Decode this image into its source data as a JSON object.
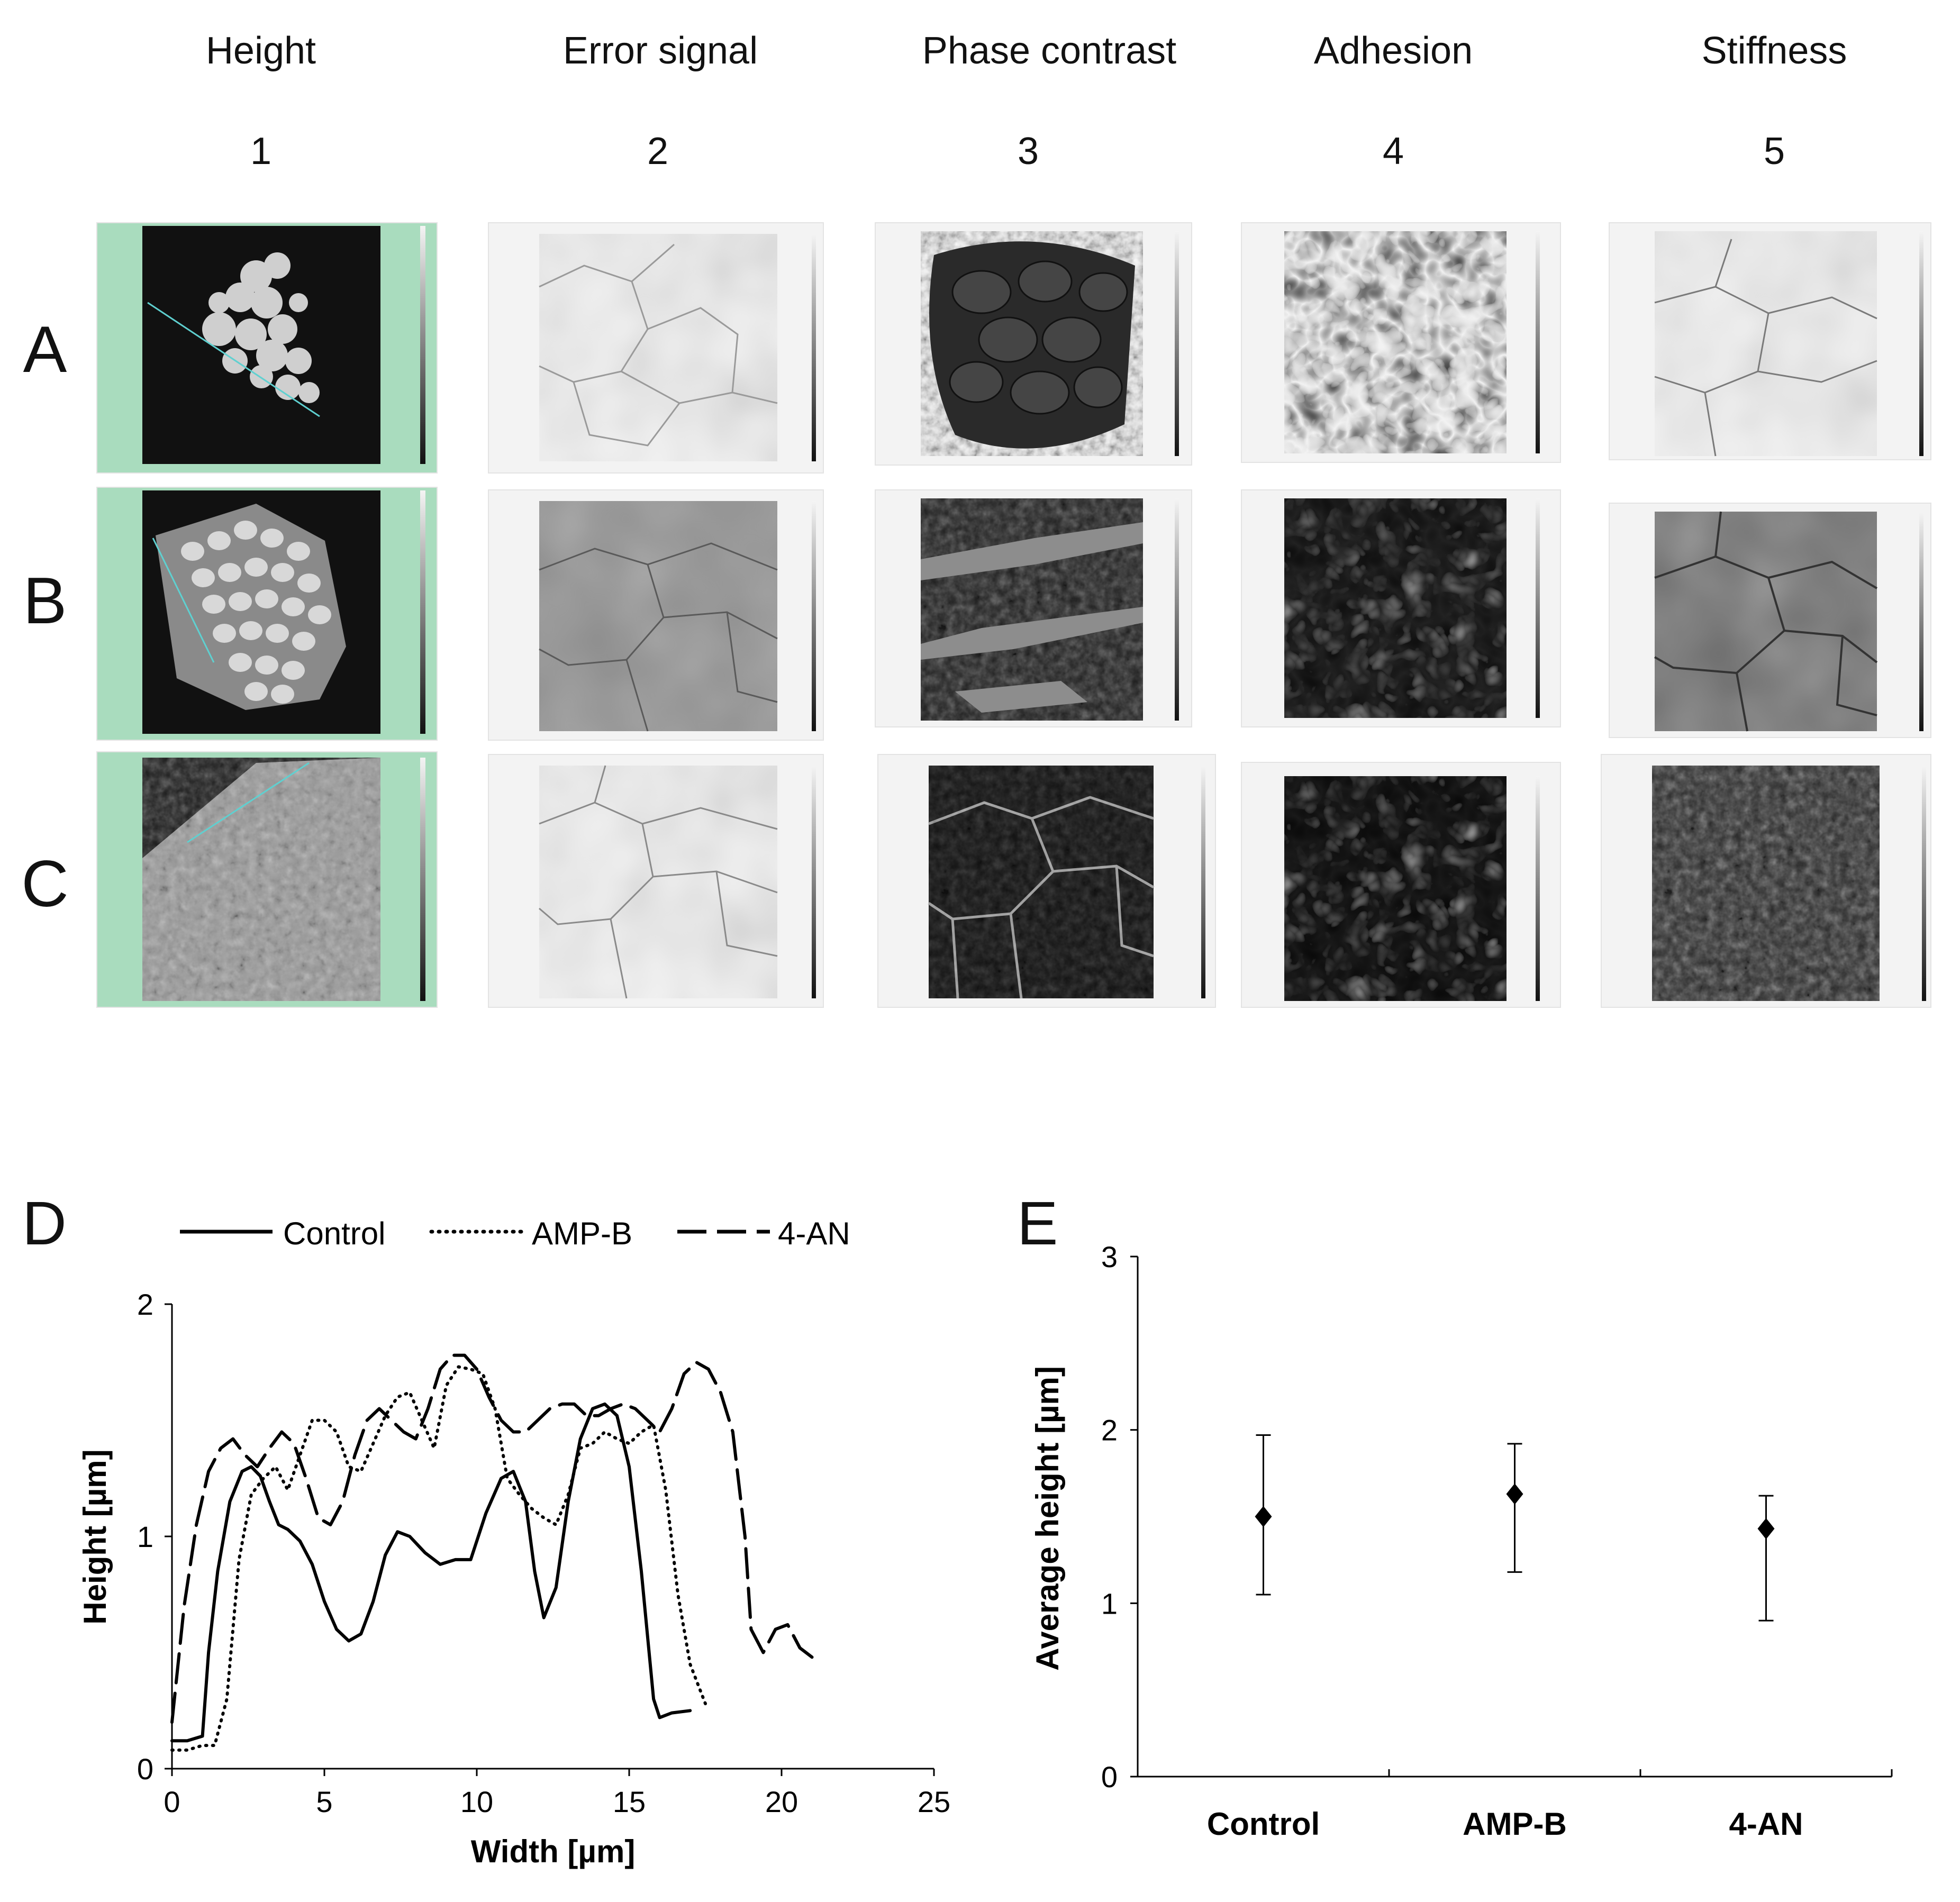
{
  "grid": {
    "columns": [
      {
        "title": "Height",
        "number": "1"
      },
      {
        "title": "Error signal",
        "number": "2"
      },
      {
        "title": "Phase contrast",
        "number": "3"
      },
      {
        "title": "Adhesion",
        "number": "4"
      },
      {
        "title": "Stiffness",
        "number": "5"
      }
    ],
    "rows": [
      "A",
      "B",
      "C"
    ]
  },
  "panel_d": {
    "letter": "D",
    "legend": [
      "Control",
      "AMP-B",
      "4-AN"
    ]
  },
  "panel_e": {
    "letter": "E"
  },
  "chart_data": [
    {
      "type": "line",
      "xlabel": "Width [µm]",
      "ylabel": "Height [µm]",
      "xlim": [
        0,
        25
      ],
      "ylim": [
        0,
        2
      ],
      "xticks": [
        0,
        5,
        10,
        15,
        20,
        25
      ],
      "yticks": [
        0,
        1,
        2
      ],
      "legend_position": "top",
      "series": [
        {
          "name": "Control",
          "style": "solid",
          "x": [
            0,
            0.5,
            1.0,
            1.2,
            1.5,
            1.9,
            2.3,
            2.6,
            2.9,
            3.2,
            3.5,
            3.8,
            4.2,
            4.6,
            5.0,
            5.4,
            5.8,
            6.2,
            6.6,
            7.0,
            7.4,
            7.8,
            8.3,
            8.8,
            9.3,
            9.8,
            10.3,
            10.8,
            11.2,
            11.6,
            11.9,
            12.2,
            12.6,
            13.0,
            13.4,
            13.8,
            14.2,
            14.6,
            15.0,
            15.4,
            15.8,
            16.0,
            16.4,
            17.0
          ],
          "y": [
            0.12,
            0.12,
            0.14,
            0.5,
            0.85,
            1.15,
            1.28,
            1.3,
            1.26,
            1.15,
            1.05,
            1.03,
            0.98,
            0.88,
            0.72,
            0.6,
            0.55,
            0.58,
            0.72,
            0.92,
            1.02,
            1.0,
            0.93,
            0.88,
            0.9,
            0.9,
            1.1,
            1.25,
            1.28,
            1.15,
            0.85,
            0.65,
            0.78,
            1.15,
            1.42,
            1.55,
            1.57,
            1.52,
            1.3,
            0.85,
            0.3,
            0.22,
            0.24,
            0.25
          ]
        },
        {
          "name": "AMP-B",
          "style": "dotted",
          "x": [
            0,
            0.5,
            1.0,
            1.4,
            1.8,
            2.2,
            2.6,
            3.0,
            3.4,
            3.8,
            4.2,
            4.6,
            5.0,
            5.4,
            5.8,
            6.2,
            6.6,
            7.0,
            7.4,
            7.8,
            8.2,
            8.6,
            9.0,
            9.4,
            9.8,
            10.2,
            10.6,
            11.0,
            11.4,
            11.8,
            12.2,
            12.6,
            13.0,
            13.4,
            13.8,
            14.2,
            14.6,
            15.0,
            15.4,
            15.8,
            16.2,
            16.6,
            17.0,
            17.5
          ],
          "y": [
            0.08,
            0.08,
            0.1,
            0.1,
            0.3,
            0.9,
            1.18,
            1.25,
            1.3,
            1.2,
            1.35,
            1.5,
            1.5,
            1.45,
            1.3,
            1.28,
            1.4,
            1.52,
            1.6,
            1.62,
            1.5,
            1.38,
            1.65,
            1.73,
            1.72,
            1.7,
            1.55,
            1.25,
            1.18,
            1.12,
            1.08,
            1.05,
            1.18,
            1.38,
            1.4,
            1.45,
            1.42,
            1.4,
            1.45,
            1.48,
            1.2,
            0.75,
            0.45,
            0.28
          ]
        },
        {
          "name": "4-AN",
          "style": "dashed",
          "x": [
            0,
            0.4,
            0.8,
            1.2,
            1.6,
            2.0,
            2.4,
            2.8,
            3.2,
            3.6,
            4.0,
            4.4,
            4.8,
            5.2,
            5.6,
            6.0,
            6.4,
            6.8,
            7.2,
            7.6,
            8.0,
            8.4,
            8.8,
            9.2,
            9.6,
            10.0,
            10.4,
            10.8,
            11.2,
            11.6,
            12.0,
            12.4,
            12.8,
            13.2,
            13.6,
            14.0,
            14.4,
            14.8,
            15.2,
            15.6,
            16.0,
            16.4,
            16.8,
            17.2,
            17.6,
            18.0,
            18.4,
            18.8,
            19.0,
            19.4,
            19.8,
            20.2,
            20.6,
            21.0
          ],
          "y": [
            0.2,
            0.7,
            1.05,
            1.28,
            1.38,
            1.42,
            1.35,
            1.3,
            1.38,
            1.45,
            1.4,
            1.25,
            1.08,
            1.05,
            1.15,
            1.35,
            1.5,
            1.55,
            1.5,
            1.45,
            1.42,
            1.55,
            1.72,
            1.78,
            1.78,
            1.72,
            1.6,
            1.5,
            1.45,
            1.45,
            1.5,
            1.55,
            1.57,
            1.57,
            1.52,
            1.52,
            1.55,
            1.57,
            1.55,
            1.5,
            1.45,
            1.55,
            1.7,
            1.75,
            1.72,
            1.62,
            1.45,
            1.0,
            0.6,
            0.5,
            0.6,
            0.62,
            0.52,
            0.48
          ]
        }
      ]
    },
    {
      "type": "scatter",
      "ylabel": "Average height [µm]",
      "ylim": [
        0,
        3
      ],
      "yticks": [
        0,
        1,
        2,
        3
      ],
      "categories": [
        "Control",
        "AMP-B",
        "4-AN"
      ],
      "values": [
        1.5,
        1.63,
        1.43
      ],
      "error_low": [
        1.05,
        1.18,
        0.9
      ],
      "error_high": [
        1.97,
        1.92,
        1.62
      ],
      "marker": "diamond"
    }
  ]
}
